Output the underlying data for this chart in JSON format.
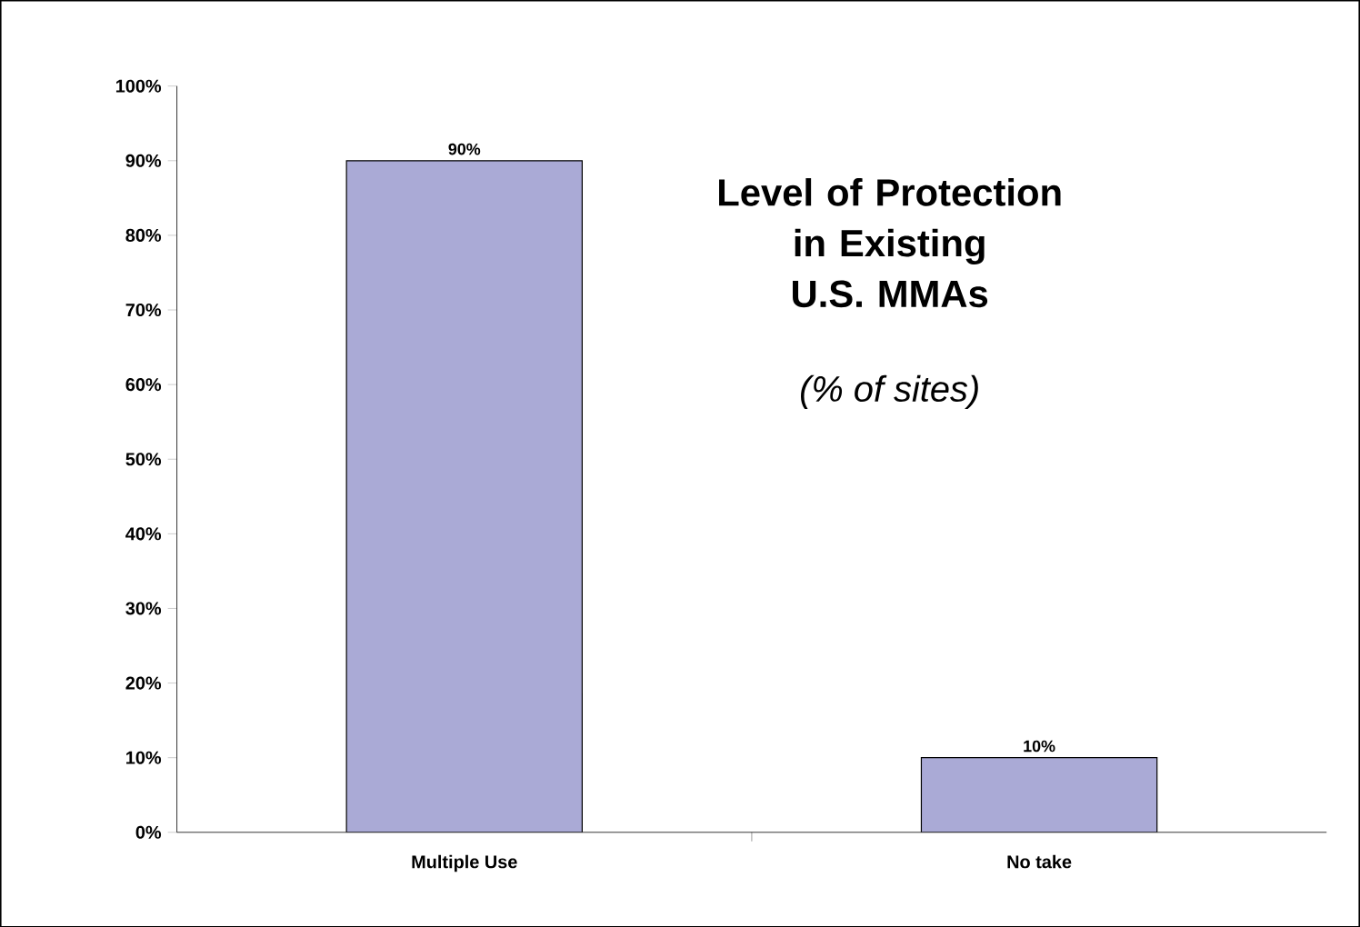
{
  "chart_data": {
    "type": "bar",
    "title": "Level of Protection in Existing U.S. MMAs",
    "subtitle": "(% of sites)",
    "categories": [
      "Multiple Use",
      "No take"
    ],
    "values": [
      90,
      10
    ],
    "value_labels": [
      "90%",
      "10%"
    ],
    "color": "#aaaad6",
    "ylim": [
      0,
      100
    ],
    "yticks": [
      {
        "value": 0,
        "label": "0%"
      },
      {
        "value": 10,
        "label": "10%"
      },
      {
        "value": 20,
        "label": "20%"
      },
      {
        "value": 30,
        "label": "30%"
      },
      {
        "value": 40,
        "label": "40%"
      },
      {
        "value": 50,
        "label": "50%"
      },
      {
        "value": 60,
        "label": "60%"
      },
      {
        "value": 70,
        "label": "70%"
      },
      {
        "value": 80,
        "label": "80%"
      },
      {
        "value": 90,
        "label": "90%"
      },
      {
        "value": 100,
        "label": "100%"
      }
    ],
    "grid": false
  }
}
